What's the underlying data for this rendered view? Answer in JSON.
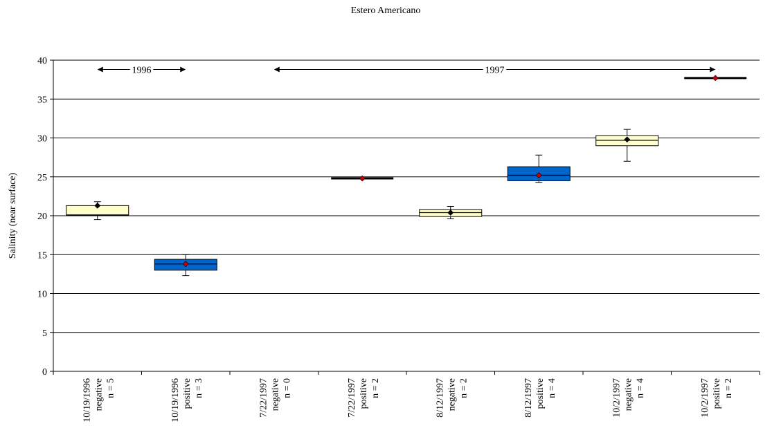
{
  "chart_data": {
    "type": "box",
    "title": "Estero Americano",
    "xlabel": "",
    "ylabel": "Salinity (near surface)",
    "ylim": [
      0,
      40
    ],
    "yticks": [
      0,
      5,
      10,
      15,
      20,
      25,
      30,
      35,
      40
    ],
    "grid": true,
    "legend": "none",
    "colors": {
      "negative": "#ffffcc",
      "positive": "#0066cc",
      "mean_negative": "#000000",
      "mean_positive": "#cc0000"
    },
    "categories": [
      {
        "date": "10/19/1996",
        "group": "negative",
        "n": "n = 5",
        "min": 19.5,
        "q1": 20.1,
        "median": 20.1,
        "q3": 21.3,
        "max": 21.8,
        "mean": 21.3,
        "color": "#ffffcc",
        "mean_color": "#000000"
      },
      {
        "date": "10/19/1996",
        "group": "positive",
        "n": "n = 3",
        "min": 12.3,
        "q1": 13.0,
        "median": 13.8,
        "q3": 14.4,
        "max": 15.0,
        "mean": 13.8,
        "color": "#0066cc",
        "mean_color": "#cc0000"
      },
      {
        "date": "7/22/1997",
        "group": "negative",
        "n": "n = 0",
        "min": 0,
        "q1": 0,
        "median": 0,
        "q3": 0,
        "max": 0,
        "mean": null,
        "color": "#ffffcc",
        "mean_color": "#000000"
      },
      {
        "date": "7/22/1997",
        "group": "positive",
        "n": "n = 2",
        "min": 24.8,
        "q1": 24.8,
        "median": 24.8,
        "q3": 24.8,
        "max": 24.8,
        "mean": 24.8,
        "color": "#0066cc",
        "mean_color": "#cc0000"
      },
      {
        "date": "8/12/1997",
        "group": "negative",
        "n": "n = 2",
        "min": 19.6,
        "q1": 19.9,
        "median": 20.4,
        "q3": 20.8,
        "max": 21.2,
        "mean": 20.4,
        "color": "#ffffcc",
        "mean_color": "#000000"
      },
      {
        "date": "8/12/1997",
        "group": "positive",
        "n": "n = 4",
        "min": 24.3,
        "q1": 24.5,
        "median": 25.2,
        "q3": 26.3,
        "max": 27.8,
        "mean": 25.2,
        "color": "#0066cc",
        "mean_color": "#cc0000"
      },
      {
        "date": "10/2/1997",
        "group": "negative",
        "n": "n = 4",
        "min": 27.0,
        "q1": 29.0,
        "median": 29.7,
        "q3": 30.3,
        "max": 31.1,
        "mean": 29.8,
        "color": "#ffffcc",
        "mean_color": "#000000"
      },
      {
        "date": "10/2/1997",
        "group": "positive",
        "n": "n = 2",
        "min": 37.7,
        "q1": 37.7,
        "median": 37.7,
        "q3": 37.7,
        "max": 37.7,
        "mean": 37.7,
        "color": "#0066cc",
        "mean_color": "#cc0000"
      }
    ],
    "annotations": [
      {
        "label": "1996",
        "from_category": 0,
        "to_category": 1,
        "y": 38.8
      },
      {
        "label": "1997",
        "from_category": 2,
        "to_category": 7,
        "y": 38.8
      }
    ]
  }
}
